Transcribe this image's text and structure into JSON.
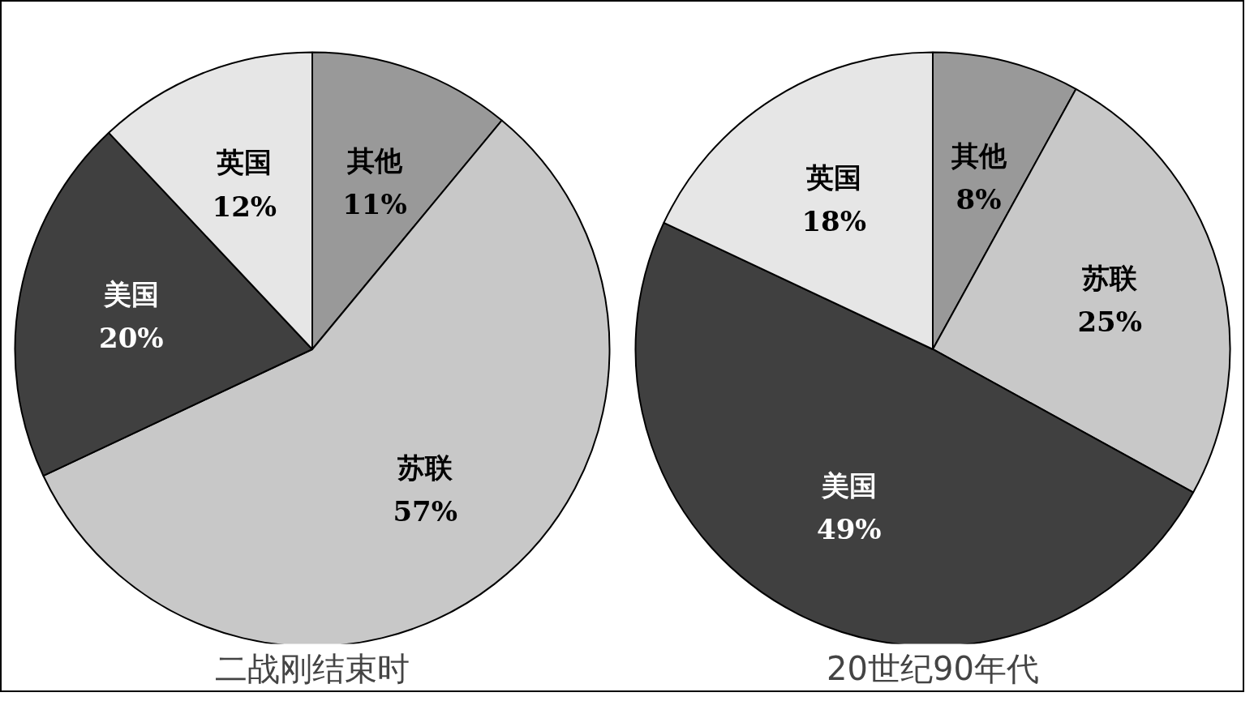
{
  "chart_data": [
    {
      "type": "pie",
      "title": "二战刚结束时",
      "categories": [
        "其他",
        "苏联",
        "美国",
        "英国"
      ],
      "values": [
        11,
        57,
        20,
        12
      ],
      "value_labels": [
        "11%",
        "57%",
        "20%",
        "12%"
      ],
      "colors": [
        "#999999",
        "#c8c8c8",
        "#404040",
        "#e6e6e6"
      ]
    },
    {
      "type": "pie",
      "title": "20世纪90年代",
      "categories": [
        "其他",
        "苏联",
        "美国",
        "英国"
      ],
      "values": [
        8,
        25,
        49,
        18
      ],
      "value_labels": [
        "8%",
        "25%",
        "49%",
        "18%"
      ],
      "colors": [
        "#999999",
        "#c8c8c8",
        "#404040",
        "#e6e6e6"
      ]
    }
  ]
}
